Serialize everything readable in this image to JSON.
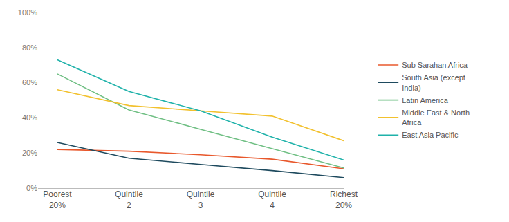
{
  "chart_data": {
    "type": "line",
    "categories": [
      "Poorest 20%",
      "Quintile 2",
      "Quintile 3",
      "Quintile 4",
      "Richest 20%"
    ],
    "series": [
      {
        "name": "Sub Sarahan Africa",
        "color": "#e8582c",
        "values": [
          22,
          21,
          19,
          16.5,
          11
        ]
      },
      {
        "name": "South Asia (except India)",
        "color": "#1e4a5e",
        "values": [
          26,
          17,
          13.5,
          10,
          6
        ]
      },
      {
        "name": "Latin America",
        "color": "#6fbf83",
        "values": [
          65,
          44.5,
          33.5,
          22.5,
          11.5
        ]
      },
      {
        "name": "Middle East & North Africa",
        "color": "#f2c12e",
        "values": [
          56,
          47,
          44,
          41,
          27
        ]
      },
      {
        "name": "East Asia Pacific",
        "color": "#1fb2aa",
        "values": [
          73,
          55,
          44,
          29,
          16
        ]
      }
    ],
    "ylim": [
      0,
      100
    ],
    "yticks": [
      {
        "value": 0,
        "label": "0%"
      },
      {
        "value": 20,
        "label": "20%"
      },
      {
        "value": 40,
        "label": "40%"
      },
      {
        "value": 60,
        "label": "60%"
      },
      {
        "value": 80,
        "label": "80%"
      },
      {
        "value": 100,
        "label": "100%"
      }
    ],
    "grid": false,
    "legend": "right"
  }
}
